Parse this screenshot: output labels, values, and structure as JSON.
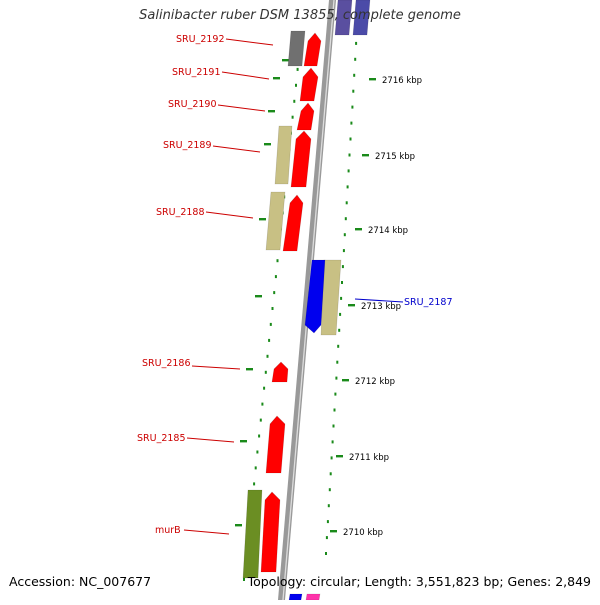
{
  "title": "Salinibacter ruber DSM 13855, complete genome",
  "footer": {
    "accession": "Accession: NC_007677",
    "summary": "Topology: circular; Length: 3,551,823 bp; Genes: 2,849"
  },
  "scale_labels": [
    {
      "text": "2716 kbp",
      "kbp": 2716
    },
    {
      "text": "2715 kbp",
      "kbp": 2715
    },
    {
      "text": "2714 kbp",
      "kbp": 2714
    },
    {
      "text": "2713 kbp",
      "kbp": 2713
    },
    {
      "text": "2712 kbp",
      "kbp": 2712
    },
    {
      "text": "2711 kbp",
      "kbp": 2711
    },
    {
      "text": "2710 kbp",
      "kbp": 2710
    }
  ],
  "gene_labels": [
    {
      "text": "SRU_2192",
      "color": "#cc0000"
    },
    {
      "text": "SRU_2191",
      "color": "#cc0000"
    },
    {
      "text": "SRU_2190",
      "color": "#cc0000"
    },
    {
      "text": "SRU_2189",
      "color": "#cc0000"
    },
    {
      "text": "SRU_2188",
      "color": "#cc0000"
    },
    {
      "text": "SRU_2187",
      "color": "#0000cc"
    },
    {
      "text": "SRU_2186",
      "color": "#cc0000"
    },
    {
      "text": "SRU_2185",
      "color": "#cc0000"
    },
    {
      "text": "murB",
      "color": "#cc0000"
    }
  ],
  "colors": {
    "cds": "#ff0000",
    "cds_reverse": "#0000ee",
    "cog_tan": "#c8c084",
    "cog_olive": "#6b8e23",
    "cog_gray": "#707070",
    "cog_purple": "#5a4fa0",
    "tick": "#1a8a1a",
    "backbone": "#999999"
  }
}
